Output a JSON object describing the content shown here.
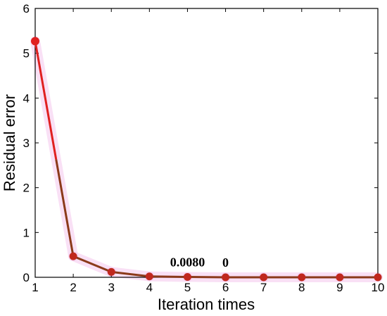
{
  "chart_data": {
    "type": "line",
    "title": "",
    "xlabel": "Iteration times",
    "ylabel": "Residual error",
    "xlim": [
      1,
      10
    ],
    "ylim": [
      0,
      6
    ],
    "x_ticks": [
      "1",
      "2",
      "3",
      "4",
      "5",
      "6",
      "7",
      "8",
      "9",
      "10"
    ],
    "y_ticks": [
      "0",
      "1",
      "2",
      "3",
      "4",
      "5",
      "6"
    ],
    "grid": false,
    "legend": "none",
    "series": [
      {
        "x": [
          1,
          2,
          3,
          4,
          5,
          6,
          7,
          8,
          9,
          10
        ],
        "y": [
          5.27,
          0.47,
          0.12,
          0.02,
          0.008,
          0,
          0,
          0,
          0,
          0
        ],
        "line_color": "#8b3a1a",
        "marker_color": "#c0281e"
      }
    ],
    "annotations": [
      {
        "text": "0.0080",
        "x": 5,
        "y": 0.008
      },
      {
        "text": "0",
        "x": 6,
        "y": 0
      }
    ],
    "colors": {
      "early_line": "#e02020",
      "line": "#8b3a1a",
      "marker": "#c0281e",
      "highlight": "#f5c8ee"
    }
  }
}
